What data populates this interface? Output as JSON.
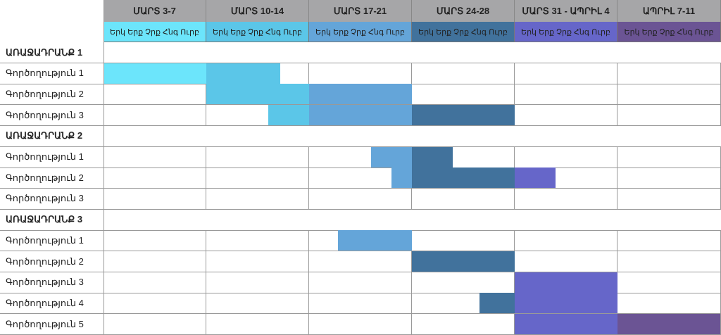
{
  "weeks": [
    {
      "label": "ՄԱՐՏ 3-7",
      "color": "#6ce5fb"
    },
    {
      "label": "ՄԱՐՏ 10-14",
      "color": "#5bc6e8"
    },
    {
      "label": "ՄԱՐՏ 17-21",
      "color": "#64a5d9"
    },
    {
      "label": "ՄԱՐՏ 24-28",
      "color": "#41729c"
    },
    {
      "label": "ՄԱՐՏ 31 - ԱՊՐԻԼ 4",
      "color": "#6666c9"
    },
    {
      "label": "ԱՊՐԻԼ 7-11",
      "color": "#6b5494"
    }
  ],
  "days_label": "Երկ Երք Չրք Հնգ Ուրբ",
  "rows": [
    {
      "type": "phase",
      "label": "ԱՌԱՋԱԴՐԱՆՔ 1"
    },
    {
      "type": "task",
      "label": "Գործողություն 1",
      "start": 0,
      "end": 8.6,
      "color": "#6ce5fb",
      "color2": "#5bc6e8",
      "split": 5
    },
    {
      "type": "task",
      "label": "Գործողություն 2",
      "start": 5,
      "end": 15,
      "color": "#5bc6e8",
      "color2": "#64a5d9",
      "split": 10
    },
    {
      "type": "task",
      "label": "Գործողություն 3",
      "start": 8,
      "end": 20,
      "color": "#5bc6e8",
      "color2": "#64a5d9",
      "color3": "#41729c",
      "split": 10,
      "split2": 15
    },
    {
      "type": "phase",
      "label": "ԱՌԱՋԱԴՐԱՆՔ 2"
    },
    {
      "type": "task",
      "label": "Գործողություն 1",
      "start": 13,
      "end": 17,
      "color": "#64a5d9",
      "color2": "#41729c",
      "split": 15
    },
    {
      "type": "task",
      "label": "Գործողություն 2",
      "start": 14,
      "end": 22,
      "color": "#64a5d9",
      "color2": "#41729c",
      "color3": "#6666c9",
      "split": 15,
      "split2": 20
    },
    {
      "type": "task",
      "label": "Գործողություն 3"
    },
    {
      "type": "phase",
      "label": "ԱՌԱՋԱԴՐԱՆՔ 3"
    },
    {
      "type": "task",
      "label": "Գործողություն 1",
      "start": 11.4,
      "end": 15,
      "color": "#64a5d9"
    },
    {
      "type": "task",
      "label": "Գործողություն 2",
      "start": 15,
      "end": 20,
      "color": "#41729c"
    },
    {
      "type": "task",
      "label": "Գործողություն 3",
      "start": 20,
      "end": 25,
      "color": "#6666c9"
    },
    {
      "type": "task",
      "label": "Գործողություն 4",
      "start": 18.3,
      "end": 25,
      "color": "#41729c",
      "color2": "#6666c9",
      "split": 20
    },
    {
      "type": "task",
      "label": "Գործողություն 5",
      "start": 20,
      "end": 30,
      "color": "#6666c9",
      "color2": "#6b5494",
      "split": 25
    }
  ]
}
